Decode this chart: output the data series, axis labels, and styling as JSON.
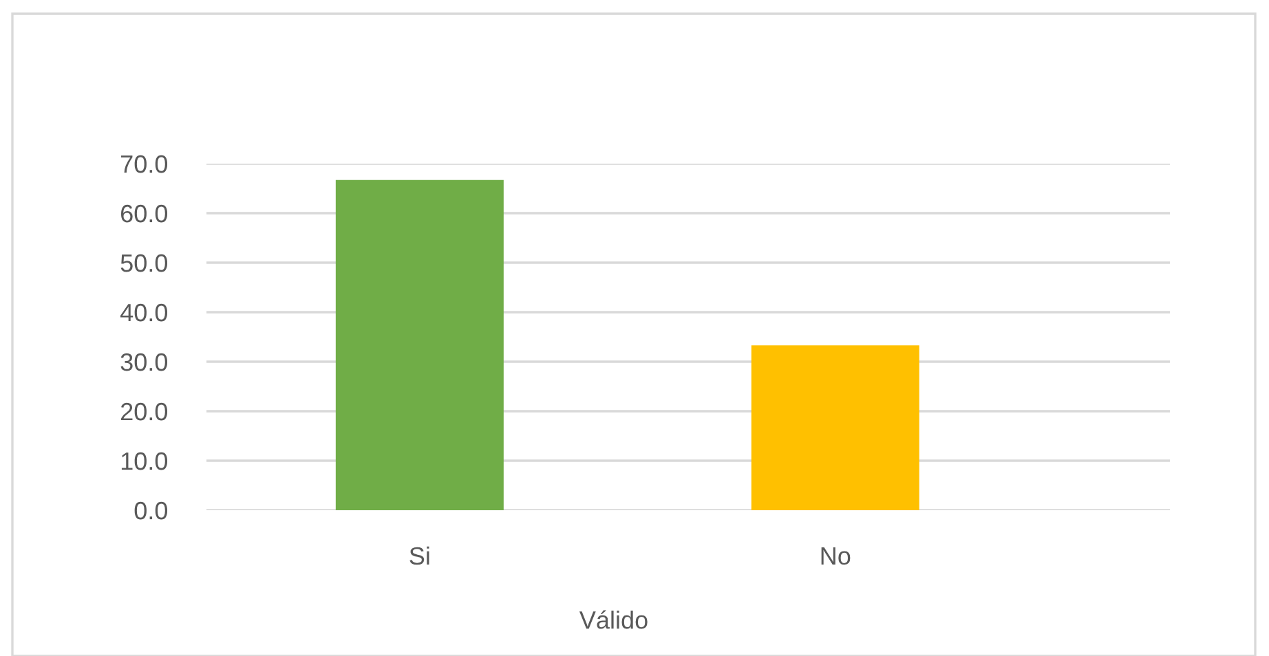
{
  "chart_data": {
    "type": "bar",
    "xlabel": "Válido",
    "categories": [
      "Si",
      "No"
    ],
    "values": [
      66.7,
      33.3
    ],
    "colors": [
      "#70ad47",
      "#ffc000"
    ],
    "ylim": [
      0,
      70
    ],
    "yticks": [
      {
        "value": 0,
        "label": "0.0"
      },
      {
        "value": 10,
        "label": "10.0"
      },
      {
        "value": 20,
        "label": "20.0"
      },
      {
        "value": 30,
        "label": "30.0"
      },
      {
        "value": 40,
        "label": "40.0"
      },
      {
        "value": 50,
        "label": "50.0"
      },
      {
        "value": 60,
        "label": "60.0"
      },
      {
        "value": 70,
        "label": "70.0"
      }
    ],
    "grid": "y"
  }
}
